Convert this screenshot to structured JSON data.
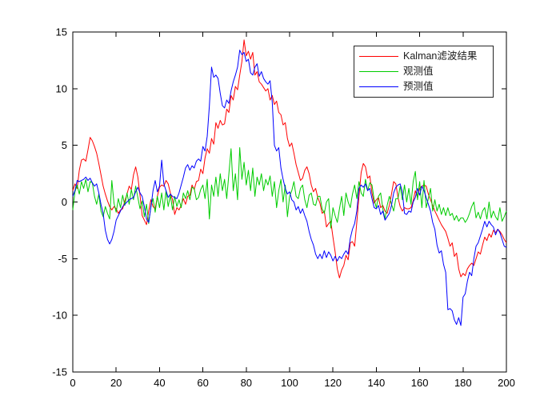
{
  "figure": {
    "background": "#FFFFFF",
    "axes": {
      "axis_color": "#000000",
      "tick_label_color": "#000000",
      "box": true,
      "grid": false,
      "tick_direction": "in",
      "tick_length": 6,
      "xlim": [
        0,
        200
      ],
      "ylim": [
        -15,
        15
      ],
      "xticks": [
        0,
        20,
        40,
        60,
        80,
        100,
        120,
        140,
        160,
        180,
        200
      ],
      "xtick_labels": [
        "0",
        "20",
        "40",
        "60",
        "80",
        "100",
        "120",
        "140",
        "160",
        "180",
        "200"
      ],
      "yticks": [
        -15,
        -10,
        -5,
        0,
        5,
        10,
        15
      ],
      "ytick_labels": [
        "-15",
        "-10",
        "-5",
        "0",
        "5",
        "10",
        "15"
      ]
    },
    "legend": {
      "position": "northeast",
      "border_color": "#262626",
      "background": "#FFFFFF",
      "entries": [
        {
          "label": "Kalman滤波结果",
          "color": "#FF0000"
        },
        {
          "label": "观测值",
          "color": "#00CC00"
        },
        {
          "label": "预测值",
          "color": "#0000FF"
        }
      ]
    }
  },
  "chart_data": {
    "type": "line",
    "title": "",
    "xlabel": "",
    "ylabel": "",
    "xlim": [
      0,
      200
    ],
    "ylim": [
      -15,
      15
    ],
    "x_start": 0,
    "x_step": 1,
    "legend_position": "northeast",
    "grid": false,
    "series": [
      {
        "name": "Kalman滤波结果",
        "color": "#FF0000",
        "values": [
          1.0,
          1.6,
          1.2,
          2.8,
          3.7,
          3.8,
          3.6,
          4.6,
          5.7,
          5.4,
          4.9,
          4.3,
          3.4,
          2.4,
          1.4,
          0.7,
          0.1,
          -0.4,
          -0.7,
          -0.4,
          -0.6,
          -1.0,
          -0.7,
          -0.6,
          0.1,
          0.7,
          1.4,
          1.1,
          2.4,
          3.1,
          2.2,
          0.6,
          -1.2,
          -1.6,
          -2.0,
          -0.8,
          0.2,
          -0.4,
          -0.6,
          0.5,
          1.3,
          1.5,
          1.4,
          1.9,
          1.6,
          0.8,
          0.2,
          -1.1,
          -0.5,
          -0.7,
          -0.3,
          0.3,
          -0.2,
          0.5,
          0.6,
          1.5,
          1.1,
          1.8,
          1.9,
          2.9,
          2.5,
          3.9,
          4.7,
          4.3,
          5.6,
          5.1,
          7.0,
          6.5,
          7.2,
          6.8,
          6.9,
          8.2,
          7.9,
          9.4,
          9.0,
          10.2,
          9.9,
          11.2,
          12.4,
          14.3,
          12.9,
          13.3,
          12.6,
          13.2,
          11.2,
          11.5,
          10.6,
          10.4,
          10.1,
          9.8,
          10.0,
          9.0,
          9.4,
          8.6,
          8.9,
          7.9,
          7.7,
          6.8,
          7.0,
          5.6,
          4.9,
          5.2,
          4.3,
          3.3,
          2.6,
          1.9,
          2.1,
          2.8,
          3.1,
          2.5,
          1.5,
          0.9,
          1.2,
          0.4,
          -0.1,
          -1.0,
          -0.8,
          -2.2,
          -1.9,
          -1.7,
          -3.1,
          -4.4,
          -5.9,
          -6.7,
          -6.0,
          -5.6,
          -4.7,
          -5.1,
          -3.6,
          -3.5,
          -3.9,
          -1.8,
          0.5,
          2.6,
          3.4,
          3.1,
          2.1,
          2.3,
          0.8,
          -0.1,
          0.2,
          0.4,
          -0.5,
          -0.3,
          -0.8,
          -1.0,
          -0.3,
          0.7,
          1.8,
          1.6,
          0.4,
          -0.4,
          -0.8,
          -0.5,
          -0.6,
          -0.6,
          -0.5,
          0.1,
          1.0,
          0.4,
          1.2,
          1.4,
          1.5,
          1.4,
          0.7,
          0.2,
          -0.3,
          -0.8,
          -1.2,
          -1.6,
          -2.0,
          -2.3,
          -2.6,
          -3.2,
          -3.9,
          -3.6,
          -4.8,
          -4.5,
          -5.9,
          -6.6,
          -6.3,
          -6.5,
          -5.9,
          -5.6,
          -5.4,
          -5.6,
          -5.0,
          -4.4,
          -4.6,
          -3.8,
          -3.1,
          -3.4,
          -2.8,
          -3.1,
          -2.5,
          -2.7,
          -2.4,
          -2.6,
          -2.9,
          -3.3,
          -3.6
        ]
      },
      {
        "name": "观测值",
        "color": "#00CC00",
        "values": [
          -0.7,
          0.9,
          1.5,
          0.7,
          1.8,
          1.2,
          2.0,
          0.9,
          1.8,
          1.7,
          0.5,
          -0.2,
          0.7,
          -0.8,
          -1.3,
          -0.4,
          -1.0,
          -1.5,
          1.9,
          -0.1,
          -0.9,
          0.3,
          -0.5,
          0.6,
          -0.3,
          0.8,
          -0.2,
          1.1,
          0.2,
          1.4,
          0.4,
          -0.6,
          0.1,
          -1.3,
          -0.2,
          -1.9,
          -0.4,
          0.3,
          -0.9,
          0.5,
          -0.5,
          0.8,
          -0.7,
          1.0,
          -0.4,
          0.6,
          -0.7,
          0.5,
          -0.4,
          0.2,
          -0.5,
          0.8,
          0.3,
          1.0,
          0.2,
          1.3,
          1.2,
          0.2,
          0.4,
          1.1,
          1.5,
          0.3,
          2.0,
          -1.5,
          1.5,
          0.5,
          2.2,
          0.5,
          2.5,
          1.0,
          2.0,
          0.3,
          2.5,
          4.7,
          1.0,
          2.5,
          0.2,
          4.8,
          2.0,
          3.5,
          1.5,
          2.8,
          1.0,
          3.0,
          0.5,
          2.2,
          1.5,
          2.5,
          1.0,
          2.0,
          1.5,
          2.3,
          0.5,
          1.8,
          -0.5,
          1.0,
          2.0,
          0.0,
          1.5,
          -1.3,
          0.5,
          1.0,
          1.8,
          0.5,
          0.3,
          1.2,
          1.5,
          0.2,
          -0.5,
          0.6,
          0.8,
          -0.2,
          -0.3,
          0.5,
          0.5,
          -0.6,
          -1.0,
          0.0,
          0.3,
          -2.3,
          -0.5,
          -1.2,
          -1.8,
          -0.6,
          0.5,
          -1.2,
          0.8,
          0.0,
          -0.5,
          0.7,
          1.5,
          0.3,
          1.8,
          0.8,
          0.5,
          2.0,
          1.0,
          1.7,
          1.5,
          0.2,
          -0.5,
          0.5,
          0.8,
          -0.6,
          -1.5,
          -0.3,
          0.5,
          -0.2,
          -0.8,
          0.3,
          0.3,
          1.4,
          0.2,
          1.5,
          0.0,
          1.2,
          -0.2,
          1.8,
          2.7,
          0.2,
          1.8,
          -0.5,
          1.9,
          -0.5,
          0.3,
          1.2,
          -0.8,
          0.2,
          -0.8,
          -0.2,
          -1.1,
          -0.5,
          -1.2,
          -0.5,
          -1.2,
          -1.0,
          -1.6,
          -1.2,
          -1.7,
          -1.4,
          -1.4,
          -1.8,
          -1.5,
          -1.0,
          -0.4,
          0.0,
          -1.4,
          -0.9,
          -1.5,
          -0.8,
          -0.5,
          -1.5,
          0.0,
          -1.4,
          -0.8,
          -1.3,
          -1.6,
          -0.5,
          -1.7,
          -1.3,
          -0.8
        ]
      },
      {
        "name": "预测值",
        "color": "#0000FF",
        "values": [
          0.5,
          1.0,
          1.9,
          1.8,
          1.9,
          2.0,
          2.2,
          1.9,
          2.1,
          1.7,
          1.4,
          1.6,
          0.8,
          -0.2,
          -1.0,
          -2.5,
          -3.3,
          -3.7,
          -3.3,
          -2.6,
          -1.6,
          -1.2,
          -0.8,
          -0.4,
          -0.2,
          0.0,
          0.2,
          0.3,
          0.4,
          0.9,
          1.3,
          0.8,
          0.5,
          -0.4,
          -1.5,
          -1.8,
          -0.5,
          1.0,
          1.9,
          0.9,
          1.4,
          3.7,
          1.6,
          1.0,
          0.4,
          0.7,
          0.5,
          0.4,
          0.3,
          0.8,
          1.5,
          2.2,
          3.0,
          3.3,
          2.8,
          3.2,
          3.0,
          3.6,
          3.8,
          3.6,
          4.9,
          4.5,
          5.8,
          8.5,
          11.9,
          11.0,
          11.2,
          10.9,
          9.6,
          8.5,
          8.3,
          9.0,
          8.7,
          9.8,
          10.6,
          11.2,
          11.9,
          13.4,
          13.0,
          13.2,
          12.4,
          12.6,
          11.4,
          11.2,
          11.9,
          12.2,
          11.1,
          11.5,
          10.9,
          10.6,
          10.4,
          10.7,
          8.8,
          5.0,
          4.5,
          4.8,
          3.0,
          2.0,
          1.2,
          0.7,
          0.9,
          0.2,
          0.0,
          -0.7,
          -0.4,
          -1.0,
          -0.6,
          -1.2,
          -1.7,
          -2.6,
          -3.3,
          -3.8,
          -4.6,
          -5.0,
          -4.6,
          -5.0,
          -4.3,
          -4.9,
          -4.4,
          -4.7,
          -5.2,
          -4.8,
          -5.2,
          -4.8,
          -5.0,
          -4.6,
          -4.3,
          -4.6,
          -3.2,
          -2.4,
          -1.9,
          -0.8,
          1.2,
          1.5,
          1.3,
          1.6,
          1.0,
          1.2,
          0.3,
          -0.5,
          -0.6,
          -0.3,
          -1.1,
          -0.8,
          -1.6,
          -1.3,
          -1.0,
          -0.3,
          0.8,
          1.3,
          1.5,
          1.6,
          0.9,
          -1.0,
          -1.1,
          -0.8,
          -0.9,
          0.0,
          0.4,
          1.2,
          0.6,
          1.4,
          1.0,
          0.4,
          -0.2,
          -0.8,
          -1.8,
          -2.4,
          -3.8,
          -4.5,
          -4.3,
          -5.5,
          -6.2,
          -9.5,
          -9.4,
          -9.6,
          -10.4,
          -10.8,
          -10.2,
          -10.9,
          -8.4,
          -8.1,
          -7.0,
          -6.2,
          -6.5,
          -5.0,
          -3.9,
          -3.6,
          -3.0,
          -2.4,
          -1.7,
          -2.2,
          -1.7,
          -2.0,
          -2.2,
          -2.9,
          -2.4,
          -2.7,
          -3.3,
          -3.9,
          -4.0
        ]
      }
    ]
  }
}
